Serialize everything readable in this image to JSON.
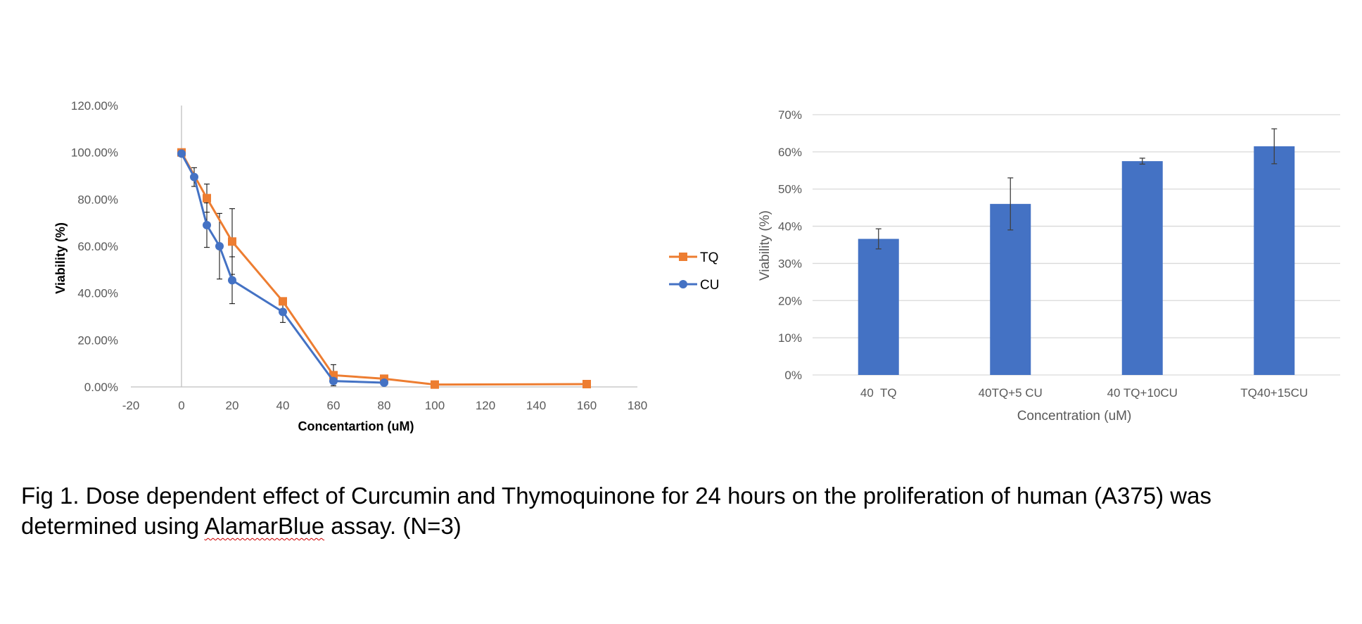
{
  "chart_data": [
    {
      "type": "line",
      "title": "",
      "xlabel": "Concentartion (uM)",
      "ylabel": "Viability (%)",
      "xlim": [
        -20,
        180
      ],
      "ylim": [
        0,
        1.2
      ],
      "x_ticks": [
        "-20",
        "0",
        "20",
        "40",
        "60",
        "80",
        "100",
        "120",
        "140",
        "160",
        "180"
      ],
      "y_ticks": [
        "0.00%",
        "20.00%",
        "40.00%",
        "60.00%",
        "80.00%",
        "100.00%",
        "120.00%"
      ],
      "grid": false,
      "legend_position": "right",
      "series": [
        {
          "name": "TQ",
          "color": "#ED7D31",
          "marker": "square",
          "x": [
            0,
            10,
            20,
            40,
            60,
            80,
            100,
            160
          ],
          "y": [
            1.0,
            0.805,
            0.62,
            0.365,
            0.05,
            0.035,
            0.01,
            0.012
          ],
          "error": [
            0,
            0.06,
            0.14,
            0,
            0.045,
            0,
            0,
            0
          ]
        },
        {
          "name": "CU",
          "color": "#4472C4",
          "marker": "circle",
          "x": [
            0,
            5,
            10,
            15,
            20,
            40,
            60,
            80
          ],
          "y": [
            0.995,
            0.895,
            0.69,
            0.6,
            0.455,
            0.32,
            0.025,
            0.018
          ],
          "error": [
            0,
            0.04,
            0.095,
            0.14,
            0.1,
            0.045,
            0,
            0
          ]
        }
      ]
    },
    {
      "type": "bar",
      "title": "",
      "xlabel": "Concentration (uM)",
      "ylabel": "Viability (%)",
      "ylim": [
        0,
        0.7
      ],
      "y_ticks": [
        "0%",
        "10%",
        "20%",
        "30%",
        "40%",
        "50%",
        "60%",
        "70%"
      ],
      "grid": true,
      "legend_position": "none",
      "bar_color": "#4472C4",
      "categories": [
        "40  TQ",
        "40TQ+5 CU",
        "40 TQ+10CU",
        "TQ40+15CU"
      ],
      "values": [
        0.366,
        0.46,
        0.575,
        0.615
      ],
      "error": [
        0.027,
        0.07,
        0.008,
        0.047
      ]
    }
  ],
  "caption": {
    "line1": " Fig 1. Dose dependent effect of Curcumin and Thymoquinone for 24 hours on the proliferation of human (A375) was",
    "line2_before": "determined using ",
    "line2_flagged": "AlamarBlue",
    "line2_after": " assay. (N=3)"
  }
}
